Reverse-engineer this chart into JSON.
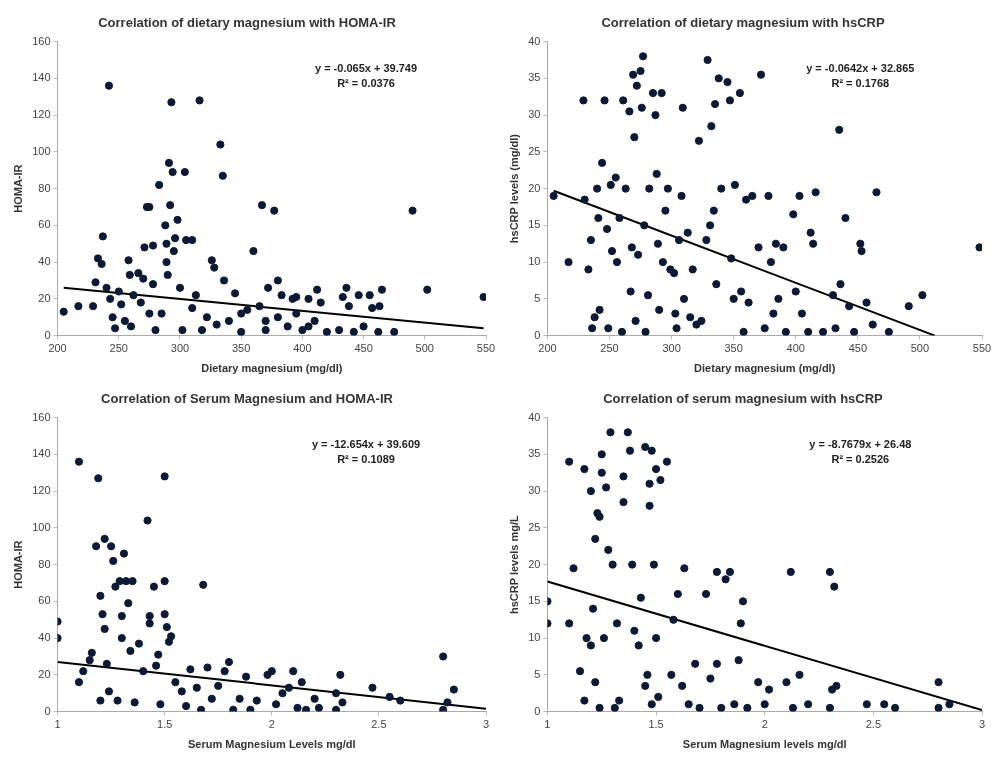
{
  "chart_data": [
    {
      "type": "scatter",
      "title": "Correlation of dietary magnesium with HOMA-IR",
      "xlabel": "Dietary magnesium (mg/dl)",
      "ylabel": "HOMA-IR",
      "xlim": [
        200,
        550
      ],
      "xticks": [
        200,
        250,
        300,
        350,
        400,
        450,
        500,
        550
      ],
      "ylim": [
        0,
        160
      ],
      "yticks": [
        0,
        20,
        40,
        60,
        80,
        100,
        120,
        140,
        160
      ],
      "grid": false,
      "annotations": [
        "y = -0.065x + 39.749",
        "R² = 0.0376"
      ],
      "series": [
        {
          "marker": "circle",
          "color": "#0d1a33",
          "x": [
            205,
            217,
            229,
            231,
            233,
            236,
            237,
            240,
            242,
            243,
            245,
            247,
            250,
            252,
            255,
            258,
            259,
            262,
            266,
            268,
            270,
            271,
            273,
            275,
            278,
            278,
            280,
            283,
            285,
            288,
            289,
            289,
            290,
            291,
            292,
            293,
            294,
            295,
            296,
            298,
            300,
            302,
            304,
            305,
            310,
            313,
            316,
            318,
            322,
            326,
            328,
            333,
            335,
            336,
            340,
            345,
            350,
            355,
            360,
            365,
            367,
            370,
            372,
            377,
            380,
            383,
            388,
            392,
            395,
            400,
            405,
            410,
            412,
            415,
            420,
            430,
            433,
            436,
            438,
            442,
            446,
            450,
            455,
            457,
            462,
            463,
            465,
            475,
            490,
            502,
            548,
            260,
            275,
            310,
            330,
            380,
            395,
            405,
            350,
            370
          ],
          "values": [
            13,
            16,
            16,
            29,
            42,
            39,
            54,
            26,
            136,
            20,
            10,
            4,
            24,
            17,
            8,
            41,
            33,
            22,
            34,
            18,
            31,
            48,
            70,
            70,
            49,
            28,
            3,
            82,
            12,
            60,
            50,
            40,
            33,
            94,
            71,
            127,
            89,
            46,
            53,
            63,
            26,
            3,
            89,
            52,
            52,
            22,
            128,
            3,
            10,
            41,
            37,
            104,
            87,
            30,
            8,
            23,
            2,
            14,
            46,
            16,
            71,
            3,
            26,
            68,
            30,
            22,
            5,
            20,
            21,
            3,
            20,
            8,
            25,
            18,
            2,
            3,
            21,
            26,
            16,
            2,
            22,
            5,
            22,
            15,
            2,
            16,
            25,
            2,
            68,
            25,
            21,
            5,
            12,
            15,
            6,
            10,
            12,
            5,
            12,
            8
          ]
        },
        {
          "type": "line",
          "marker": "none",
          "color": "#000000",
          "x": [
            205,
            548
          ],
          "values": [
            26,
            4
          ]
        }
      ]
    },
    {
      "type": "scatter",
      "title": "Correlation of dietary magnesium with hsCRP",
      "xlabel": "Dietary magnesium (mg/dl)",
      "ylabel": "hsCRP levels (mg/dl)",
      "xlim": [
        200,
        550
      ],
      "xticks": [
        200,
        250,
        300,
        350,
        400,
        450,
        500,
        550
      ],
      "ylim": [
        0,
        40
      ],
      "yticks": [
        0,
        5,
        10,
        15,
        20,
        25,
        30,
        35,
        40
      ],
      "grid": false,
      "annotations": [
        "y = -0.0642x + 32.865",
        "R² = 0.1768"
      ],
      "series": [
        {
          "marker": "circle",
          "color": "#0d1a33",
          "x": [
            205,
            217,
            229,
            230,
            233,
            235,
            236,
            238,
            240,
            241,
            242,
            244,
            246,
            248,
            249,
            251,
            252,
            255,
            256,
            258,
            260,
            261,
            263,
            266,
            267,
            268,
            269,
            270,
            271,
            272,
            273,
            275,
            276,
            277,
            278,
            279,
            281,
            282,
            285,
            287,
            288,
            289,
            290,
            292,
            293,
            295,
            297,
            299,
            302,
            303,
            304,
            306,
            308,
            309,
            310,
            313,
            315,
            317,
            320,
            322,
            324,
            328,
            329,
            331,
            332,
            334,
            335,
            336,
            338,
            340,
            345,
            347,
            348,
            350,
            351,
            355,
            356,
            358,
            360,
            362,
            365,
            370,
            372,
            375,
            378,
            380,
            382,
            384,
            386,
            390,
            392,
            398,
            400,
            403,
            405,
            410,
            412,
            414,
            416,
            422,
            430,
            432,
            435,
            436,
            440,
            443,
            447,
            452,
            453,
            457,
            462,
            465,
            475,
            491,
            502,
            548
          ],
          "values": [
            19,
            10,
            32,
            18.5,
            9,
            13,
            1,
            2.5,
            20,
            16,
            3.5,
            23.5,
            32,
            14.5,
            1,
            20.5,
            11.5,
            21.5,
            10,
            16,
            0.5,
            32,
            20,
            30.5,
            6,
            12,
            35.5,
            27,
            2,
            34,
            11,
            36,
            31,
            38,
            15,
            0.5,
            5.5,
            20,
            33,
            30,
            22,
            12.5,
            3.5,
            33,
            10,
            17,
            20,
            9,
            8.5,
            3,
            1,
            13,
            19,
            31,
            5,
            14,
            2.5,
            9,
            1.5,
            26.5,
            2,
            13,
            37.5,
            15,
            28.5,
            17,
            31.5,
            7,
            35,
            20,
            34.5,
            32,
            10.5,
            5,
            20.5,
            33,
            6,
            0.5,
            18.5,
            4.5,
            19,
            12,
            35.5,
            1,
            19,
            10,
            3,
            12.5,
            5,
            12,
            0.5,
            16.5,
            6,
            19,
            3,
            0.5,
            14,
            12.5,
            19.5,
            0.5,
            5.5,
            1,
            28,
            7,
            16,
            4,
            0.5,
            12.5,
            11.5,
            4.5,
            1.5,
            19.5,
            0.5,
            4,
            5.5,
            12
          ]
        },
        {
          "type": "line",
          "marker": "none",
          "color": "#000000",
          "x": [
            205,
            512
          ],
          "values": [
            19.7,
            0
          ]
        }
      ]
    },
    {
      "type": "scatter",
      "title": "Correlation of Serum Magnesium and HOMA-IR",
      "xlabel": "Serum Magnesium Levels mg/dl",
      "ylabel": "HOMA-IR",
      "xlim": [
        1,
        3
      ],
      "xticks": [
        1,
        1.5,
        2,
        2.5,
        3
      ],
      "ylim": [
        0,
        160
      ],
      "yticks": [
        0,
        20,
        40,
        60,
        80,
        100,
        120,
        140,
        160
      ],
      "grid": false,
      "annotations": [
        "y = -12.654x + 39.609",
        "R² = 0.1089"
      ],
      "series": [
        {
          "marker": "circle",
          "color": "#0d1a33",
          "x": [
            1,
            1,
            1.1,
            1.1,
            1.12,
            1.15,
            1.16,
            1.18,
            1.19,
            1.2,
            1.2,
            1.21,
            1.22,
            1.22,
            1.23,
            1.24,
            1.25,
            1.26,
            1.27,
            1.28,
            1.29,
            1.3,
            1.3,
            1.31,
            1.32,
            1.33,
            1.34,
            1.35,
            1.36,
            1.38,
            1.4,
            1.42,
            1.43,
            1.43,
            1.45,
            1.46,
            1.47,
            1.48,
            1.5,
            1.5,
            1.5,
            1.51,
            1.52,
            1.53,
            1.55,
            1.58,
            1.6,
            1.62,
            1.65,
            1.67,
            1.68,
            1.7,
            1.72,
            1.75,
            1.78,
            1.8,
            1.82,
            1.85,
            1.88,
            1.9,
            1.93,
            1.98,
            2,
            2.02,
            2.05,
            2.08,
            2.1,
            2.12,
            2.14,
            2.16,
            2.2,
            2.22,
            2.3,
            2.3,
            2.32,
            2.33,
            2.47,
            2.55,
            2.6,
            2.8,
            2.8,
            2.82,
            2.85
          ],
          "values": [
            49,
            40,
            136,
            16,
            22,
            28,
            32,
            90,
            127,
            63,
            6,
            53,
            45,
            94,
            26,
            11,
            90,
            82,
            68,
            6,
            71,
            52,
            40,
            86,
            71,
            59,
            33,
            71,
            5,
            37,
            22,
            104,
            52,
            48,
            68,
            25,
            31,
            4,
            128,
            71,
            53,
            46,
            38,
            41,
            16,
            11,
            3,
            23,
            13,
            1,
            69,
            24,
            7,
            14,
            22,
            27,
            1,
            7,
            19,
            1,
            6,
            20,
            22,
            4,
            10,
            13,
            22,
            2,
            16,
            1,
            7,
            2,
            10,
            1,
            20,
            5,
            13,
            8,
            6,
            30,
            1,
            5,
            12
          ]
        },
        {
          "type": "line",
          "marker": "none",
          "color": "#000000",
          "x": [
            1,
            3
          ],
          "values": [
            27,
            1.6
          ]
        }
      ]
    },
    {
      "type": "scatter",
      "title": "Correlation of serum magnesium with hsCRP",
      "xlabel": "Serum Magnesium levels mg/dl",
      "ylabel": "hsCRP levels mg/L",
      "xlim": [
        1,
        3
      ],
      "xticks": [
        1,
        1.5,
        2,
        2.5,
        3
      ],
      "ylim": [
        0,
        40
      ],
      "yticks": [
        0,
        5,
        10,
        15,
        20,
        25,
        30,
        35,
        40
      ],
      "grid": false,
      "annotations": [
        "y = -8.7679x + 26.48",
        "R² = 0.2526"
      ],
      "series": [
        {
          "marker": "circle",
          "color": "#0d1a33",
          "x": [
            1,
            1,
            1.1,
            1.1,
            1.12,
            1.15,
            1.17,
            1.17,
            1.18,
            1.2,
            1.2,
            1.21,
            1.22,
            1.22,
            1.23,
            1.24,
            1.24,
            1.25,
            1.25,
            1.26,
            1.27,
            1.28,
            1.29,
            1.3,
            1.31,
            1.32,
            1.33,
            1.35,
            1.35,
            1.37,
            1.38,
            1.39,
            1.4,
            1.42,
            1.43,
            1.45,
            1.45,
            1.46,
            1.47,
            1.47,
            1.48,
            1.48,
            1.49,
            1.5,
            1.5,
            1.51,
            1.52,
            1.55,
            1.57,
            1.58,
            1.6,
            1.62,
            1.63,
            1.65,
            1.68,
            1.7,
            1.73,
            1.75,
            1.78,
            1.78,
            1.8,
            1.82,
            1.84,
            1.86,
            1.88,
            1.89,
            1.9,
            1.92,
            1.97,
            2,
            2.02,
            2.1,
            2.12,
            2.13,
            2.16,
            2.2,
            2.3,
            2.3,
            2.31,
            2.32,
            2.33,
            2.47,
            2.55,
            2.6,
            2.8,
            2.8,
            2.85
          ],
          "values": [
            15,
            12,
            34,
            12,
            19.5,
            5.5,
            33,
            1.5,
            10,
            9,
            30,
            14,
            23.5,
            4,
            27,
            26.5,
            0.5,
            35,
            32.5,
            10,
            30.5,
            22,
            38,
            20,
            0.5,
            12,
            1.5,
            28.5,
            32,
            38,
            35.5,
            20,
            11,
            9,
            15.5,
            36,
            3.5,
            5,
            31,
            28,
            35.5,
            1,
            20,
            33,
            10,
            2,
            31.5,
            34,
            5,
            12.5,
            16,
            3.5,
            19.5,
            1,
            6.5,
            0.5,
            16,
            4.5,
            19,
            6.5,
            0.5,
            18,
            19,
            1,
            7,
            12,
            15,
            0.5,
            4,
            1,
            3,
            4,
            19,
            0.5,
            5,
            1,
            19,
            0.5,
            3,
            17,
            3.5,
            1,
            1,
            0.5,
            4,
            0.5,
            1
          ]
        },
        {
          "type": "line",
          "marker": "none",
          "color": "#000000",
          "x": [
            1,
            3
          ],
          "values": [
            17.7,
            0.2
          ]
        }
      ]
    }
  ]
}
